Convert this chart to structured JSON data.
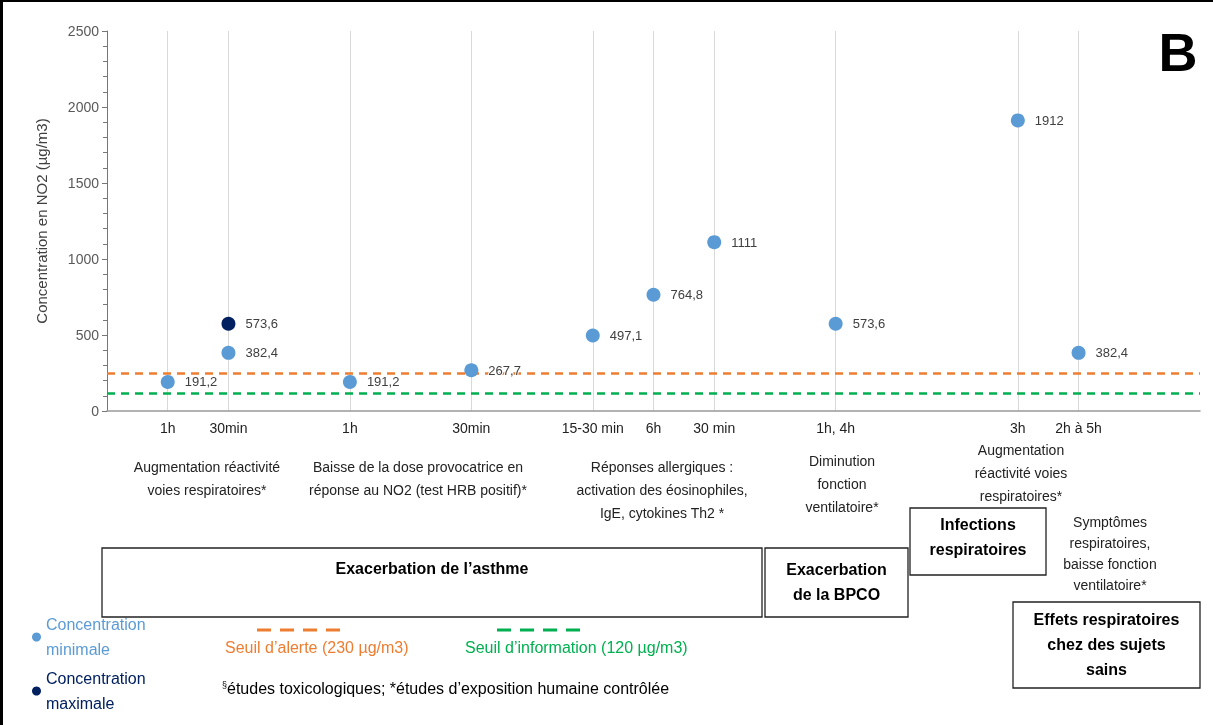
{
  "chart_data": {
    "type": "scatter",
    "ylabel": "Concentration en NO2 (µg/m3)",
    "categories": [
      null,
      "1h",
      "30min",
      null,
      "1h",
      null,
      "30min",
      null,
      "15-30 min",
      "6h",
      "30 min",
      null,
      "1h, 4h",
      null,
      null,
      "3h",
      "2h à 5h",
      null,
      null
    ],
    "series": [
      {
        "name": "Concentration minimale",
        "color": "#5b9bd5",
        "values": [
          null,
          191.2,
          382.4,
          null,
          191.2,
          null,
          267.7,
          null,
          497.1,
          764.8,
          1111,
          null,
          573.6,
          null,
          null,
          1912,
          382.4,
          null,
          null
        ],
        "value_labels": [
          null,
          "191,2",
          "382,4",
          null,
          "191,2",
          null,
          "267,7",
          null,
          "497,1",
          "764,8",
          "1111",
          null,
          "573,6",
          null,
          null,
          "1912",
          "382,4",
          null,
          null
        ]
      },
      {
        "name": "Concentration maximale",
        "color": "#002060",
        "values": [
          null,
          null,
          573.6,
          null,
          null,
          null,
          null,
          null,
          null,
          null,
          null,
          null,
          null,
          null,
          null,
          null,
          null,
          null,
          null
        ],
        "value_labels": [
          null,
          null,
          "573,6",
          null,
          null,
          null,
          null,
          null,
          null,
          null,
          null,
          null,
          null,
          null,
          null,
          null,
          null,
          null,
          null
        ]
      }
    ],
    "ylim": [
      0,
      2500
    ],
    "yticks": [
      0,
      500,
      1000,
      1500,
      2000,
      2500
    ],
    "grid": "x",
    "legend": "bottom left",
    "marker": "circle",
    "ref_lines": [
      {
        "axis": "y",
        "value": 250,
        "label": "Seuil d’alerte (230 µg/m3)",
        "color": "#ed7d31",
        "line_style": "dashed"
      },
      {
        "axis": "y",
        "value": 120,
        "label": "Seuil d’information (120 µg/m3)",
        "color": "#00b050",
        "line_style": "dashed"
      }
    ],
    "annotations": [
      "B",
      "Augmentation réactivité\nvoies respiratoires*",
      "Baisse de la dose provocatrice en\nréponse au NO2 (test HRB positif)*",
      "Réponses allergiques :\nactivation des éosinophiles,\nIgE, cytokines Th2 *",
      "Diminution\nfonction\nventilatoire*",
      "Augmentation\nréactivité voies\nrespiratoires*",
      "Symptômes\nrespiratoires,\nbaisse fonction\nventilatoire*",
      "Exacerbation de l’asthme",
      "Exacerbation\nde la BPCO",
      "Infections\nrespiratoires",
      "Effets respiratoires\nchez des sujets\nsains",
      "$^{§}$études toxicologiques; *études d’exposition humaine contrôlée"
    ]
  }
}
